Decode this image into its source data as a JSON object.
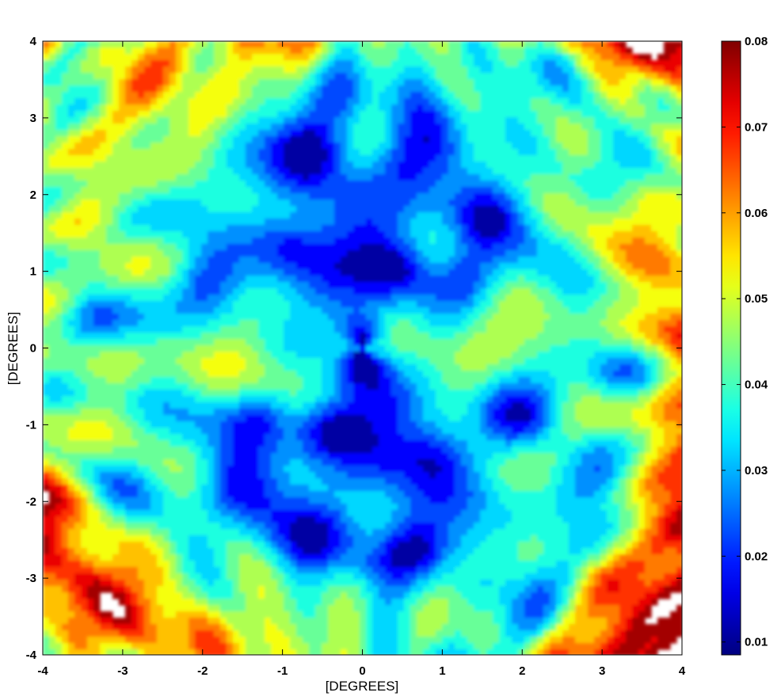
{
  "chart_data": {
    "type": "heatmap",
    "subtype": "filled-contour",
    "title": "",
    "xlabel": "[DEGREES]",
    "ylabel": "[DEGREES]",
    "xlim": [
      -4,
      4
    ],
    "ylim": [
      -4,
      4
    ],
    "xticks": [
      "-4",
      "-3",
      "-2",
      "-1",
      "0",
      "1",
      "2",
      "3",
      "4"
    ],
    "yticks": [
      "4",
      "3",
      "2",
      "1",
      "0",
      "-1",
      "-2",
      "-3",
      "-4"
    ],
    "grid": false,
    "colorbar": {
      "colormap": "jet",
      "range": [
        0.0085,
        0.08
      ],
      "ticks": [
        "0.08",
        "0.07",
        "0.06",
        "0.05",
        "0.04",
        "0.03",
        "0.02",
        "0.01"
      ],
      "levels": [
        0.0085,
        0.015,
        0.02,
        0.025,
        0.03,
        0.035,
        0.04,
        0.045,
        0.05,
        0.055,
        0.06,
        0.065,
        0.07,
        0.075,
        0.08
      ],
      "above_max_color": "#ffffff"
    },
    "regions": [
      {
        "x": 0.0,
        "y": 0.0,
        "value": 0.009
      },
      {
        "x": -0.45,
        "y": -1.05,
        "value": 0.012
      },
      {
        "x": 0.45,
        "y": 1.05,
        "value": 0.012
      },
      {
        "x": -0.9,
        "y": 1.3,
        "value": 0.02
      },
      {
        "x": 0.9,
        "y": -1.35,
        "value": 0.02
      },
      {
        "x": 1.3,
        "y": 0.9,
        "value": 0.02
      },
      {
        "x": -1.3,
        "y": -0.9,
        "value": 0.02
      },
      {
        "x": -2.0,
        "y": 0.9,
        "value": 0.022
      },
      {
        "x": 2.0,
        "y": -0.9,
        "value": 0.022
      },
      {
        "x": -3.3,
        "y": 0.4,
        "value": 0.022
      },
      {
        "x": 3.3,
        "y": -0.4,
        "value": 0.022
      },
      {
        "x": -1.6,
        "y": -1.8,
        "value": 0.022
      },
      {
        "x": 1.6,
        "y": 1.8,
        "value": 0.022
      },
      {
        "x": -0.7,
        "y": 2.6,
        "value": 0.022
      },
      {
        "x": 0.7,
        "y": -2.6,
        "value": 0.022
      },
      {
        "x": 3.0,
        "y": 2.2,
        "value": 0.03
      },
      {
        "x": -3.0,
        "y": -2.2,
        "value": 0.03
      },
      {
        "x": -3.0,
        "y": 1.8,
        "value": 0.028
      },
      {
        "x": 3.0,
        "y": -1.8,
        "value": 0.028
      },
      {
        "x": 0.45,
        "y": 2.4,
        "value": 0.025
      },
      {
        "x": -0.45,
        "y": -2.4,
        "value": 0.025
      }
    ]
  }
}
